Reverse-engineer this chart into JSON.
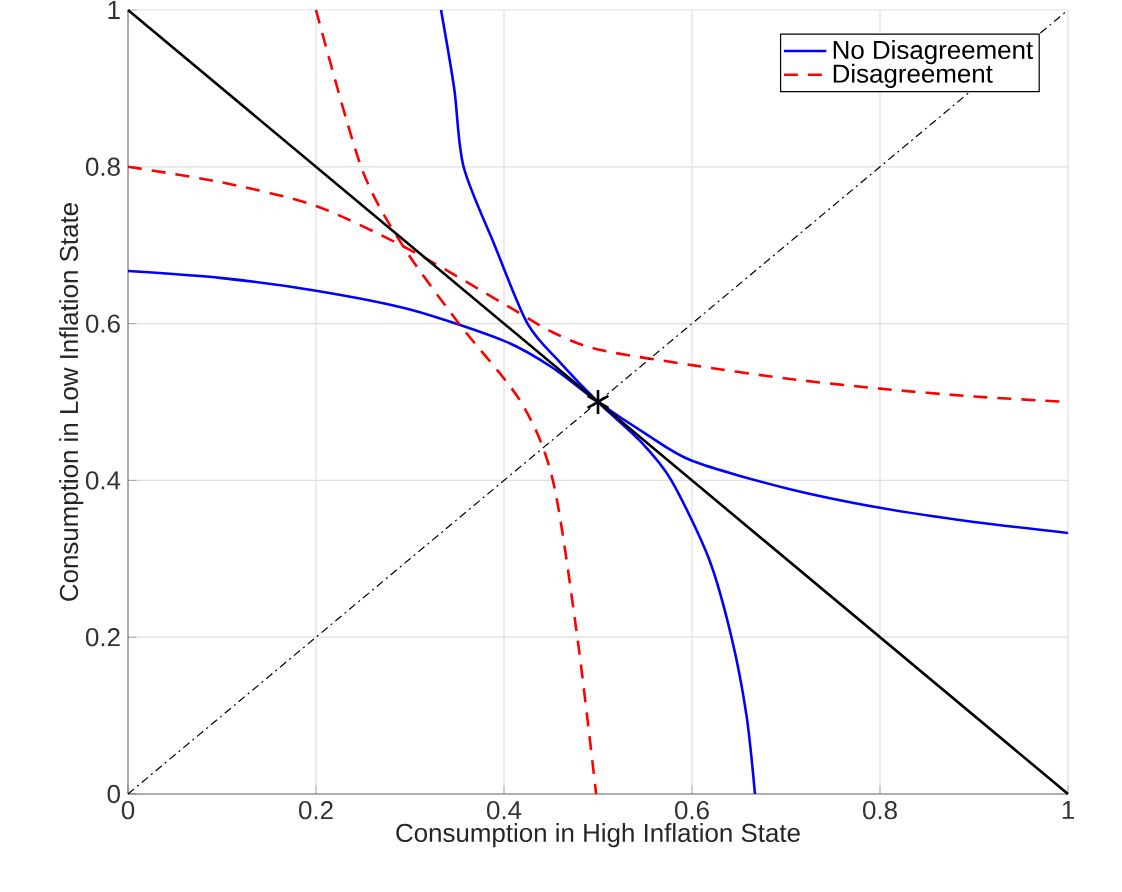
{
  "chart_data": {
    "type": "line",
    "xlabel": "Consumption in High Inflation State",
    "ylabel": "Consumption in Low Inflation State",
    "xlim": [
      0,
      1
    ],
    "ylim": [
      0,
      1
    ],
    "xticks": [
      0,
      0.2,
      0.4,
      0.6,
      0.8,
      1
    ],
    "yticks": [
      0,
      0.2,
      0.4,
      0.6,
      0.8,
      1
    ],
    "grid": true,
    "legend": "top right",
    "series": [
      {
        "name": "No Disagreement",
        "color": "#0000ff",
        "line_style": "solid",
        "marker": "none",
        "x": [
          0,
          0.1,
          0.2,
          0.3,
          0.4,
          0.45,
          0.5,
          0.55,
          0.6,
          0.7,
          0.8,
          0.9,
          1
        ],
        "values": [
          0.667,
          0.658,
          0.642,
          0.618,
          0.578,
          0.545,
          0.5,
          0.46,
          0.425,
          0.39,
          0.365,
          0.347,
          0.333
        ]
      },
      {
        "name": "Disagreement",
        "color": "#ff0000",
        "line_style": "dashed",
        "marker": "none",
        "x": [
          0,
          0.1,
          0.2,
          0.3,
          0.4,
          0.45,
          0.5,
          0.6,
          0.7,
          0.8,
          0.9,
          1
        ],
        "values": [
          0.8,
          0.78,
          0.75,
          0.694,
          0.625,
          0.59,
          0.567,
          0.547,
          0.53,
          0.517,
          0.507,
          0.5
        ]
      },
      {
        "color": "#0000ff",
        "line_style": "solid",
        "marker": "none",
        "x": [
          0.333,
          0.347,
          0.357,
          0.39,
          0.425,
          0.46,
          0.5,
          0.545,
          0.578,
          0.618,
          0.642,
          0.658,
          0.667
        ],
        "values": [
          1,
          0.9,
          0.8,
          0.7,
          0.6,
          0.55,
          0.5,
          0.45,
          0.4,
          0.3,
          0.2,
          0.1,
          0
        ]
      },
      {
        "color": "#ff0000",
        "line_style": "dashed",
        "marker": "none",
        "x": [
          0.2,
          0.248,
          0.292,
          0.352,
          0.418,
          0.452,
          0.478,
          0.498
        ],
        "values": [
          1,
          0.8,
          0.7,
          0.6,
          0.5,
          0.4,
          0.2,
          0
        ]
      },
      {
        "color": "#000000",
        "line_style": "solid",
        "marker": "none",
        "x": [
          0,
          1
        ],
        "values": [
          1,
          0
        ]
      },
      {
        "color": "#000000",
        "line_style": "dashdot",
        "marker": "none",
        "x": [
          0,
          1
        ],
        "values": [
          0,
          1
        ]
      },
      {
        "type": "scatter",
        "color": "#000000",
        "marker": "cross",
        "x": [
          0.5
        ],
        "values": [
          0.5
        ]
      }
    ]
  }
}
